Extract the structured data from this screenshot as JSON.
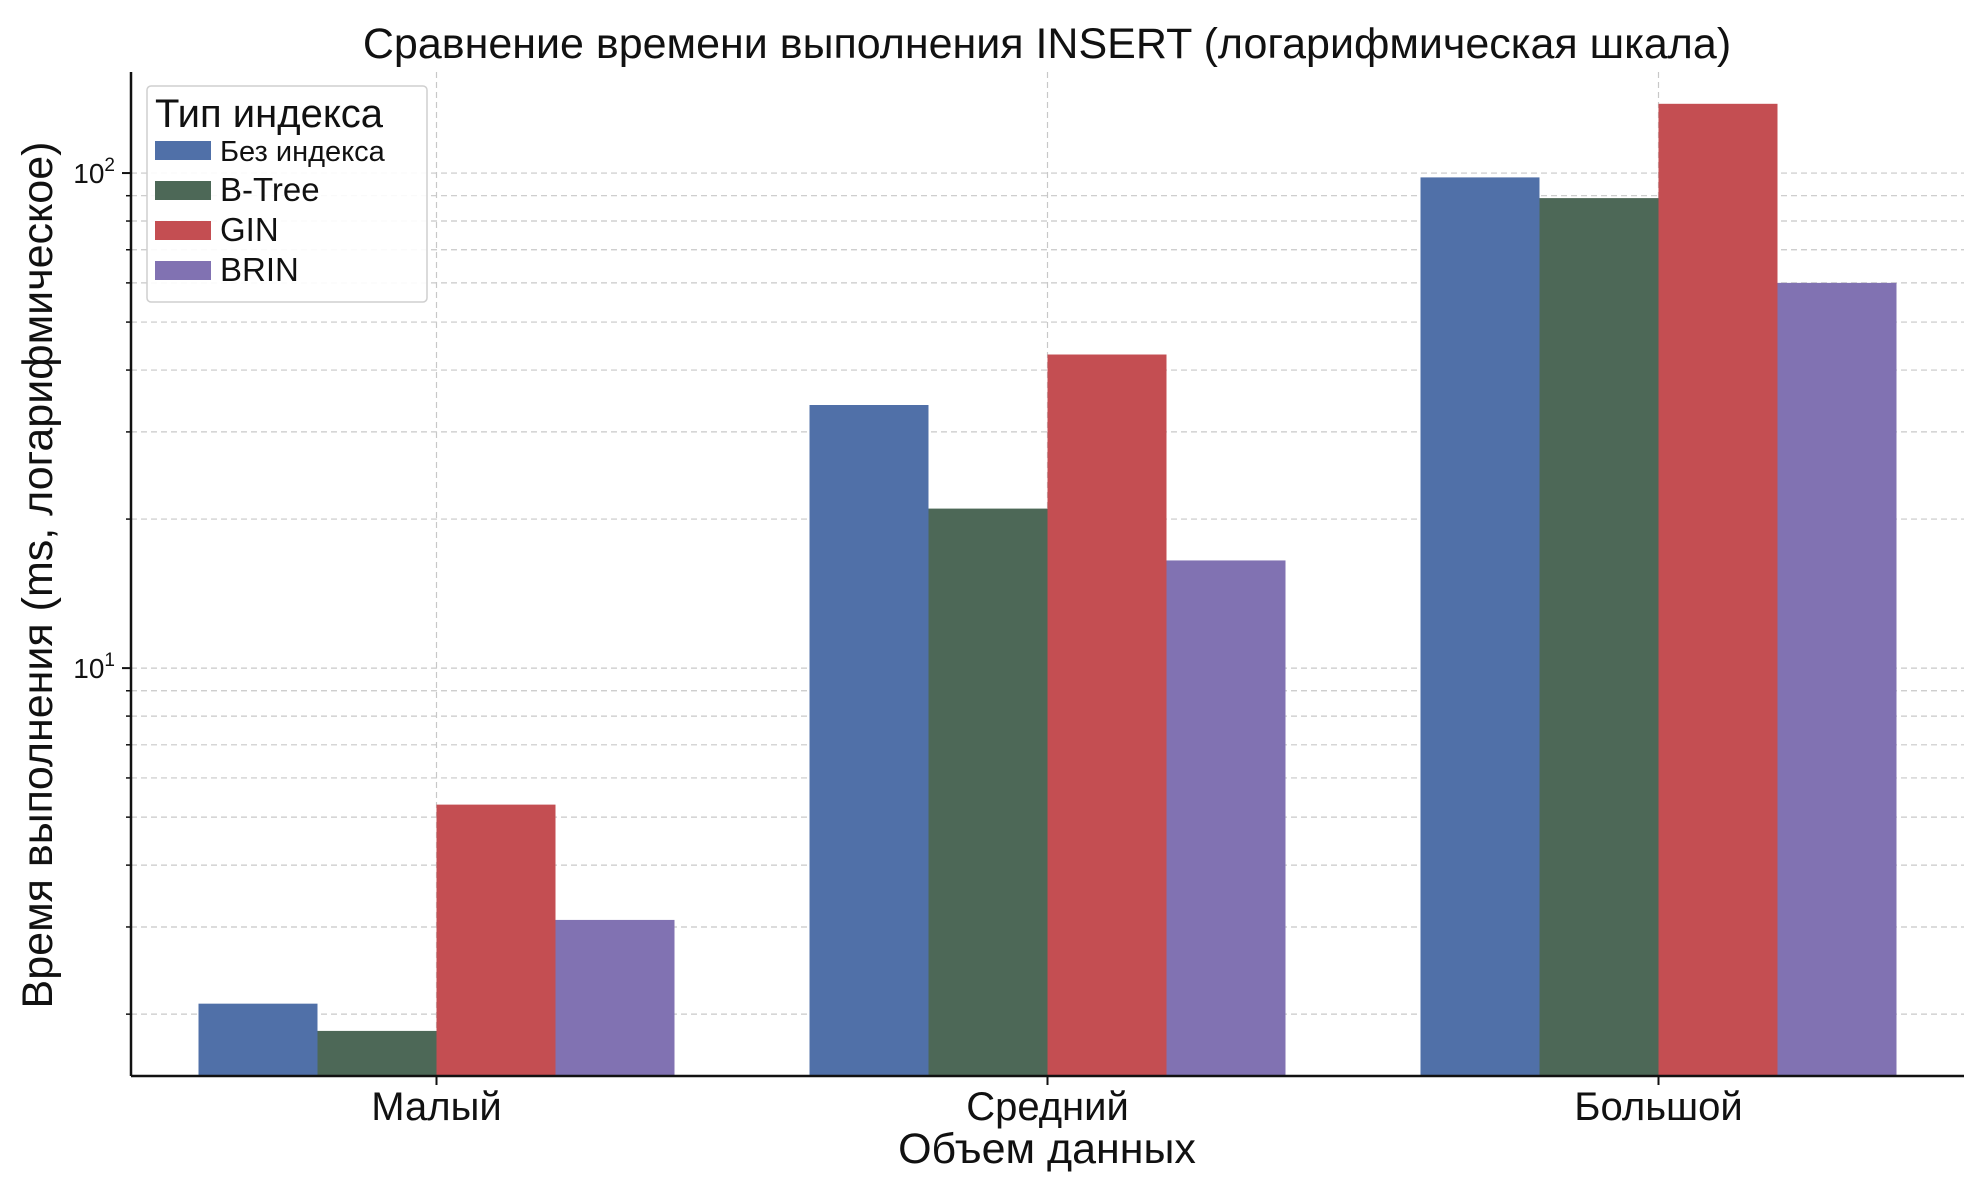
{
  "chart_data": {
    "type": "bar",
    "title": "Сравнение времени выполнения INSERT (логарифмическая шкала)",
    "xlabel": "Объем данных",
    "ylabel": "Время выполнения (ms, логарифмическое)",
    "yscale": "log",
    "ylim": [
      1.5,
      160
    ],
    "yticks": [
      {
        "value": 10,
        "base": "10",
        "exp": "1"
      },
      {
        "value": 100,
        "base": "10",
        "exp": "2"
      }
    ],
    "grid": true,
    "categories": [
      "Малый",
      "Средний",
      "Большой"
    ],
    "series": [
      {
        "name": "Без индекса",
        "color": "#5070a8",
        "values": [
          2.1,
          34,
          98
        ]
      },
      {
        "name": "B-Tree",
        "color": "#4d6857",
        "values": [
          1.85,
          21,
          89
        ]
      },
      {
        "name": "GIN",
        "color": "#c44e52",
        "values": [
          5.3,
          43,
          138
        ]
      },
      {
        "name": "BRIN",
        "color": "#8172b2",
        "values": [
          3.1,
          16.5,
          60
        ]
      }
    ],
    "legend": {
      "title": "Тип индекса",
      "position": "top-left"
    }
  }
}
